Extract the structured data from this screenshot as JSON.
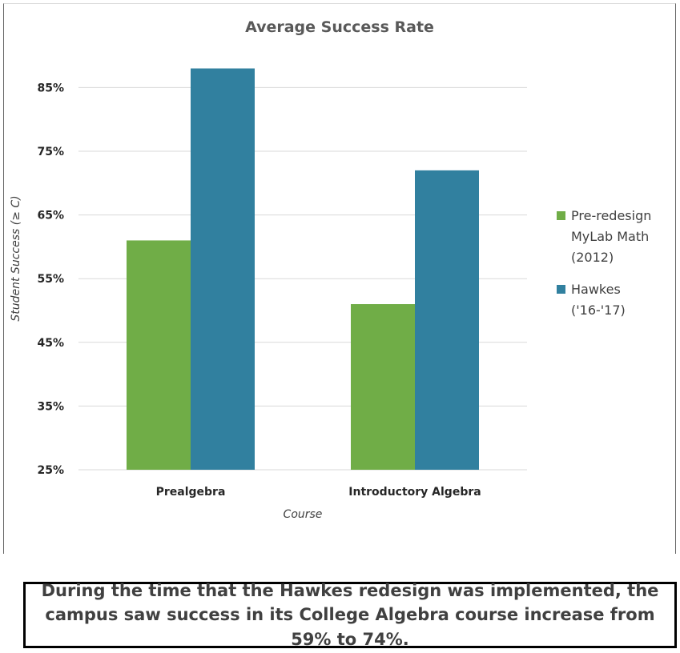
{
  "chart_data": {
    "type": "bar",
    "title": "Average Success Rate",
    "xlabel": "Course",
    "ylabel": "Student Success (≥ C)",
    "categories": [
      "Prealgebra",
      "Introductory Algebra"
    ],
    "series": [
      {
        "name": "Pre-redesign MyLab Math (2012)",
        "legend_lines": [
          "Pre-redesign",
          "MyLab Math",
          "(2012)"
        ],
        "color": "#70ad47",
        "values": [
          61,
          51
        ]
      },
      {
        "name": "Hawkes ('16-'17)",
        "legend_lines": [
          "Hawkes",
          "('16-'17)"
        ],
        "color": "#31809f",
        "values": [
          88,
          72
        ]
      }
    ],
    "ylim": [
      25,
      95
    ],
    "yticks": [
      25,
      35,
      45,
      55,
      65,
      75,
      85
    ],
    "ytick_labels": [
      "25%",
      "35%",
      "45%",
      "55%",
      "65%",
      "75%",
      "85%"
    ],
    "grid": true,
    "legend_position": "right"
  },
  "caption": "During the time that the Hawkes redesign was implemented, the campus saw success in its College Algebra course increase from 59% to 74%."
}
